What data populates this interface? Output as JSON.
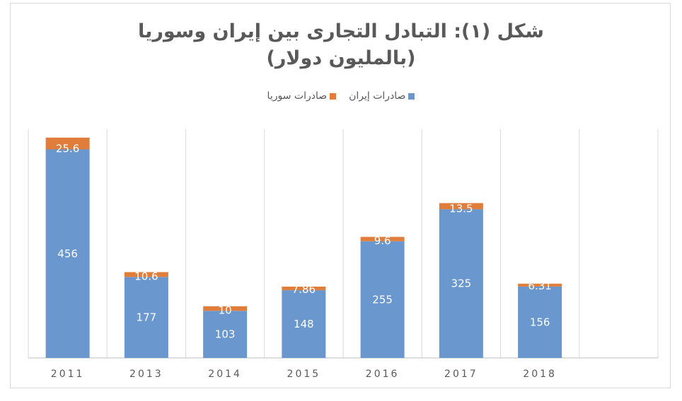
{
  "chart_data": {
    "type": "bar",
    "stacked": true,
    "title_line1": "شكل (١): التبادل التجارى بين إيران وسوريا",
    "title_line2": "(بالمليون دولار)",
    "xlabel": "",
    "ylabel": "",
    "categories": [
      "2011",
      "2013",
      "2014",
      "2015",
      "2016",
      "2017",
      "2018",
      ""
    ],
    "series": [
      {
        "name": "صادرات إيران",
        "color": "#6a97ce",
        "values": [
          456,
          177,
          103,
          148,
          255,
          325,
          156,
          null
        ],
        "labels": [
          "456",
          "177",
          "103",
          "148",
          "255",
          "325",
          "156",
          ""
        ]
      },
      {
        "name": "صادرات سوريا",
        "color": "#e07d3a",
        "values": [
          25.6,
          10.6,
          10,
          7.86,
          9.6,
          13.5,
          6.31,
          null
        ],
        "labels": [
          "25.6",
          "10.6",
          "10",
          "7.86",
          "9.6",
          "13.5",
          "6.31",
          ""
        ]
      }
    ],
    "ylim": [
      0,
      500
    ],
    "grid": "vertical",
    "legend_position": "top"
  }
}
